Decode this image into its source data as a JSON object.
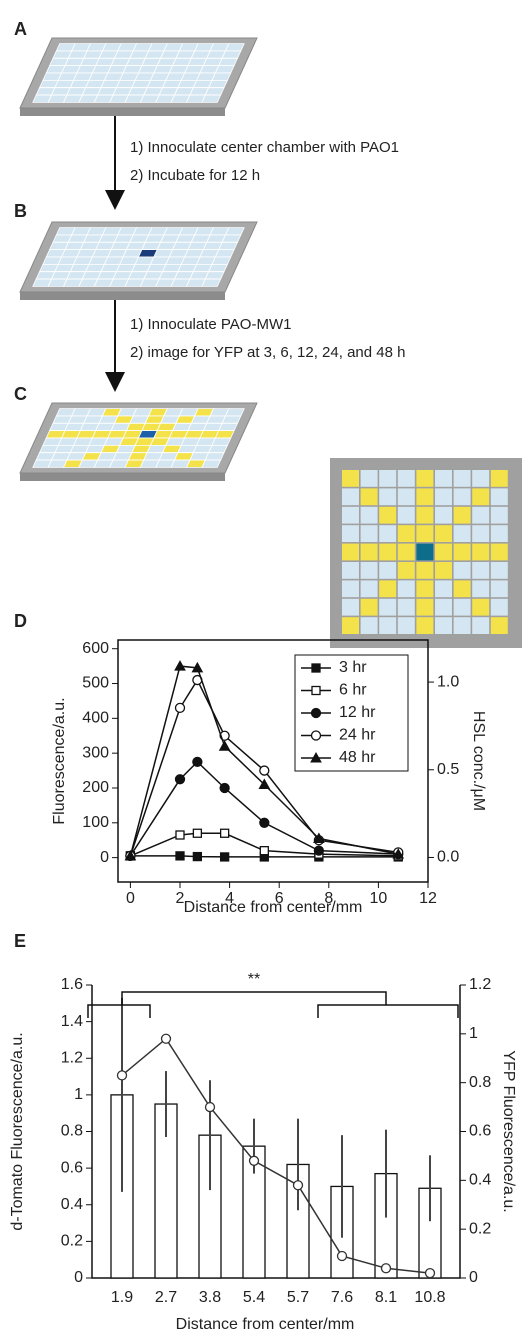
{
  "schematic": {
    "labels": [
      "A",
      "B",
      "C"
    ],
    "step1": [
      "1) Innoculate center chamber with PAO1",
      "2) Incubate for 12 h"
    ],
    "step2": [
      "1) Innoculate PAO-MW1",
      "2) image for YFP at 3, 6, 12, 24, and 48 h"
    ]
  },
  "chart_data": [
    {
      "type": "line",
      "panel": "D",
      "x_label": "Distance from center/mm",
      "y_label": "Fluorescence/a.u.",
      "y2_label": "HSL conc./μM",
      "x": [
        0,
        2,
        2.7,
        3.8,
        5.4,
        7.6,
        10.8
      ],
      "series": [
        {
          "name": "3 hr",
          "marker": "square",
          "color": "#111",
          "values": [
            5,
            5,
            3,
            2,
            2,
            2,
            2
          ]
        },
        {
          "name": "6 hr",
          "marker": "open-square",
          "color": "#111",
          "values": [
            5,
            65,
            70,
            70,
            20,
            10,
            5
          ]
        },
        {
          "name": "12 hr",
          "marker": "circle",
          "color": "#111",
          "values": [
            5,
            225,
            275,
            200,
            100,
            20,
            10
          ]
        },
        {
          "name": "24 hr",
          "marker": "open-circle",
          "color": "#111",
          "values": [
            5,
            430,
            510,
            350,
            250,
            50,
            15
          ]
        },
        {
          "name": "48 hr",
          "marker": "triangle",
          "color": "#111",
          "values": [
            5,
            550,
            545,
            320,
            210,
            55,
            10
          ]
        }
      ],
      "xlim": [
        -0.5,
        12
      ],
      "xticks": [
        0,
        2,
        4,
        6,
        8,
        10,
        12
      ],
      "ylim": [
        -70,
        625
      ],
      "yticks": [
        0,
        100,
        200,
        300,
        400,
        500,
        600
      ],
      "y2lim": [
        -0.14,
        1.24
      ],
      "y2ticks": [
        {
          "value": 0,
          "label": "0.0"
        },
        {
          "value": 0.5,
          "label": "0.5"
        },
        {
          "value": 1,
          "label": "1.0"
        }
      ],
      "legend": "upper right"
    },
    {
      "type": "bar",
      "panel": "E",
      "x_label": "Distance from center/mm",
      "y_label": "d-Tomato Fluorescence/a.u.",
      "y2_label": "YFP Fluorescence/a.u.",
      "annotation": "**",
      "categories": [
        "1.9",
        "2.7",
        "3.8",
        "5.4",
        "5.7",
        "7.6",
        "8.1",
        "10.8"
      ],
      "series": [
        {
          "color": "#ffffff",
          "values": [
            1.0,
            0.95,
            0.78,
            0.72,
            0.62,
            0.5,
            0.57,
            0.49
          ],
          "errors": [
            0.53,
            0.18,
            0.3,
            0.15,
            0.25,
            0.28,
            0.24,
            0.18
          ]
        },
        {
          "color": "#333333",
          "axis": "y2",
          "values": [
            0.83,
            0.98,
            0.7,
            0.48,
            0.38,
            0.09,
            0.04,
            0.02
          ]
        }
      ],
      "ylim": [
        0,
        1.6
      ],
      "yticks": [
        0,
        0.2,
        0.4,
        0.6,
        0.8,
        1,
        1.2,
        1.4,
        1.6
      ],
      "y2lim": [
        0,
        1.2
      ],
      "y2ticks": [
        0,
        0.2,
        0.4,
        0.6,
        0.8,
        1,
        1.2
      ]
    }
  ]
}
